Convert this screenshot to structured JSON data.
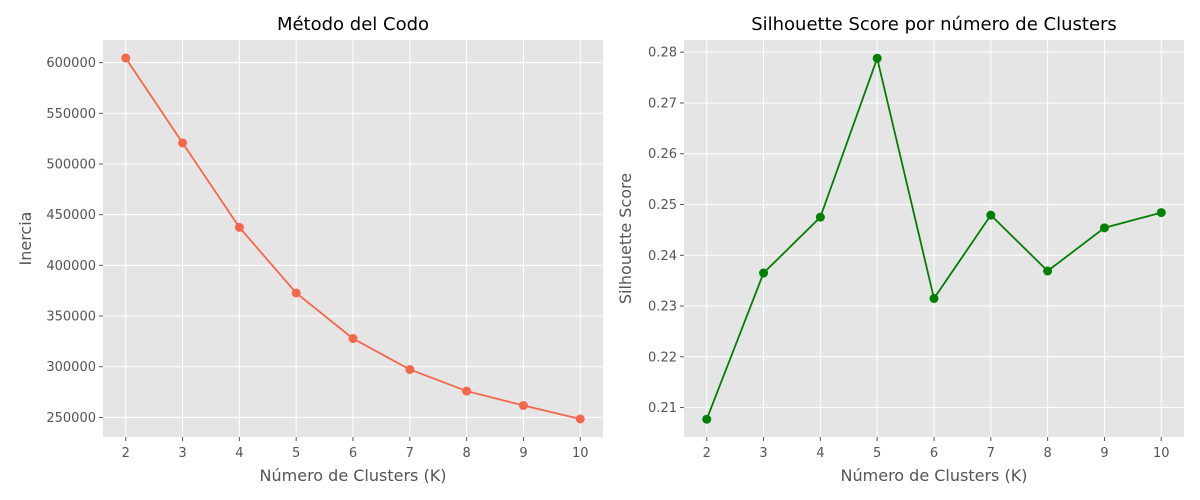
{
  "chart_data": [
    {
      "type": "line",
      "title": "Método del Codo",
      "xlabel": "Número de Clusters (K)",
      "ylabel": "Inercia",
      "x": [
        2,
        3,
        4,
        5,
        6,
        7,
        8,
        9,
        10
      ],
      "series": [
        {
          "values": [
            604500,
            520800,
            437500,
            372800,
            327800,
            297300,
            276000,
            261800,
            248500
          ],
          "color": "#f5674a"
        }
      ],
      "xticks": [
        "2",
        "3",
        "4",
        "5",
        "6",
        "7",
        "8",
        "9",
        "10"
      ],
      "yticks": [
        "250000",
        "300000",
        "350000",
        "400000",
        "450000",
        "500000",
        "550000",
        "600000"
      ],
      "xlim": [
        1.6,
        10.4
      ],
      "ylim": [
        230700,
        622300
      ],
      "grid": true,
      "background": "#e5e5e5"
    },
    {
      "type": "line",
      "title": "Silhouette Score por número de Clusters",
      "xlabel": "Número de Clusters (K)",
      "ylabel": "Silhouette Score",
      "x": [
        2,
        3,
        4,
        5,
        6,
        7,
        8,
        9,
        10
      ],
      "series": [
        {
          "values": [
            0.2077,
            0.2365,
            0.2475,
            0.2788,
            0.2315,
            0.2479,
            0.2369,
            0.2454,
            0.2484
          ],
          "color": "#008000"
        }
      ],
      "xticks": [
        "2",
        "3",
        "4",
        "5",
        "6",
        "7",
        "8",
        "9",
        "10"
      ],
      "yticks": [
        "0.21",
        "0.22",
        "0.23",
        "0.24",
        "0.25",
        "0.26",
        "0.27",
        "0.28"
      ],
      "xlim": [
        1.6,
        10.4
      ],
      "ylim": [
        0.2042,
        0.2824
      ],
      "grid": true,
      "background": "#e5e5e5"
    }
  ]
}
